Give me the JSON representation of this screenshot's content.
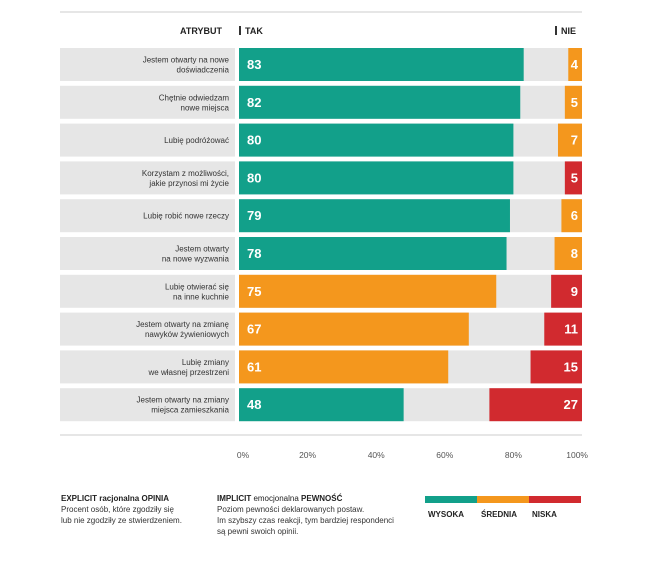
{
  "chart_data": {
    "type": "bar",
    "orientation": "horizontal-diverging",
    "header": {
      "attribute_label": "ATRYBUT",
      "tak_label": "TAK",
      "nie_label": "NIE"
    },
    "categories": [
      "Jestem otwarty na nowe|doświadczenia",
      "Chętnie odwiedzam|nowe miejsca",
      "Lubię podróżować",
      "Korzystam z możliwości,|jakie przynosi mi życie",
      "Lubię robić nowe rzeczy",
      "Jestem otwarty|na nowe wyzwania",
      "Lubię otwierać się|na inne kuchnie",
      "Jestem otwarty na zmianę|nawyków żywieniowych",
      "Lubię zmiany|we własnej przestrzeni",
      "Jestem otwarty na zmiany|miejsca zamieszkania"
    ],
    "series": [
      {
        "name": "TAK",
        "values": [
          83,
          82,
          80,
          80,
          79,
          78,
          75,
          67,
          61,
          48
        ],
        "certainty": [
          "wysoka",
          "wysoka",
          "wysoka",
          "wysoka",
          "wysoka",
          "wysoka",
          "srednia",
          "srednia",
          "srednia",
          "wysoka"
        ]
      },
      {
        "name": "NIE",
        "values": [
          4,
          5,
          7,
          5,
          6,
          8,
          9,
          11,
          15,
          27
        ],
        "certainty": [
          "srednia",
          "srednia",
          "srednia",
          "niska",
          "srednia",
          "srednia",
          "niska",
          "niska",
          "niska",
          "niska"
        ]
      }
    ],
    "x_ticks": [
      "0%",
      "20%",
      "40%",
      "60%",
      "80%",
      "100%"
    ],
    "xlim": [
      0,
      100
    ],
    "grid": false,
    "colors": {
      "wysoka": "#12a08a",
      "srednia": "#f4971d",
      "niska": "#d12a2f",
      "background_bar": "#e6e6e6",
      "label_panel": "#e6e6e6",
      "rule": "#cccccc",
      "header_marker": "#333333"
    },
    "legend": {
      "items": [
        {
          "key": "wysoka",
          "label": "WYSOKA"
        },
        {
          "key": "srednia",
          "label": "ŚREDNIA"
        },
        {
          "key": "niska",
          "label": "NISKA"
        }
      ]
    }
  },
  "footer": {
    "explicit": {
      "title_bold": "EXPLICIT racjonalna OPINIA",
      "line1": "Procent osób, które zgodziły się",
      "line2": "lub nie zgodziły ze stwierdzeniem."
    },
    "implicit": {
      "title_bold_1": "IMPLICIT",
      "title_mid": " emocjonalna ",
      "title_bold_2": "PEWNOŚĆ",
      "line1": "Poziom pewności deklarowanych postaw.",
      "line2": "Im szybszy czas reakcji, tym bardziej respondenci",
      "line3": "są pewni swoich opinii."
    }
  }
}
